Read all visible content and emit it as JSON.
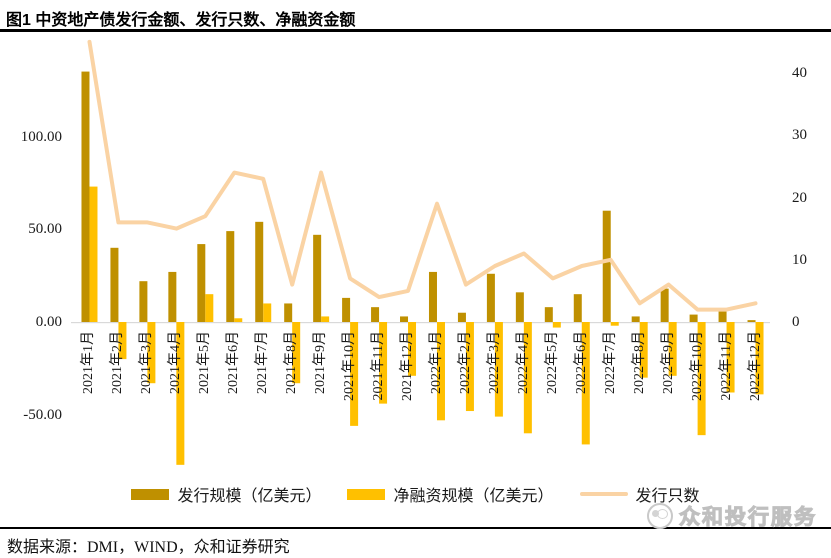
{
  "title": "图1 中资地产债发行金额、发行只数、净融资金额",
  "source_note": "数据来源：DMI，WIND，众和证券研究",
  "watermark": "众和投行服务",
  "colors": {
    "issuance_bar": "#BF9000",
    "net_financing_bar": "#FFC000",
    "count_line": "#FAD3A4",
    "zero_axis_line": "#D9D9D9",
    "rule": "#000000",
    "watermark_gray": "#C4C4C4"
  },
  "chart_data": {
    "type": "bar",
    "subtype": "dual-axis combo: two bar series (left axis) + one line series (right axis)",
    "categories": [
      "2021年1月",
      "2021年2月",
      "2021年3月",
      "2021年4月",
      "2021年5月",
      "2021年6月",
      "2021年7月",
      "2021年8月",
      "2021年9月",
      "2021年10月",
      "2021年11月",
      "2021年12月",
      "2022年1月",
      "2022年2月",
      "2022年3月",
      "2022年4月",
      "2022年5月",
      "2022年6月",
      "2022年7月",
      "2022年8月",
      "2022年9月",
      "2022年10月",
      "2022年11月",
      "2022年12月"
    ],
    "series": [
      {
        "name": "发行规模（亿美元）",
        "type": "bar",
        "axis": "left",
        "color": "#BF9000",
        "values": [
          135,
          40,
          22,
          27,
          42,
          49,
          54,
          10,
          47,
          13,
          8,
          3,
          27,
          5,
          26,
          16,
          8,
          15,
          60,
          3,
          18,
          4,
          7,
          1
        ]
      },
      {
        "name": "净融资规模（亿美元）",
        "type": "bar",
        "axis": "left",
        "color": "#FFC000",
        "values": [
          73,
          -20,
          -33,
          -77,
          15,
          2,
          10,
          -33,
          3,
          -56,
          -44,
          -29,
          -53,
          -48,
          -51,
          -60,
          -3,
          -66,
          -2,
          -30,
          -29,
          -61,
          -38,
          -39
        ]
      },
      {
        "name": "发行只数",
        "type": "line",
        "axis": "right",
        "color": "#FAD3A4",
        "values": [
          45,
          16,
          16,
          15,
          17,
          24,
          23,
          6,
          24,
          7,
          4,
          5,
          19,
          6,
          9,
          11,
          7,
          9,
          10,
          3,
          6,
          2,
          2,
          3
        ]
      }
    ],
    "left_axis": {
      "tick_labels": [
        "100.00",
        "50.00",
        "0.00",
        "-50.00"
      ],
      "tick_values": [
        100,
        50,
        0,
        -50
      ]
    },
    "right_axis": {
      "tick_labels": [
        "40",
        "30",
        "20",
        "10",
        "0"
      ],
      "tick_values": [
        40,
        30,
        20,
        10,
        0
      ]
    },
    "legend_position": "bottom",
    "grid": false
  }
}
